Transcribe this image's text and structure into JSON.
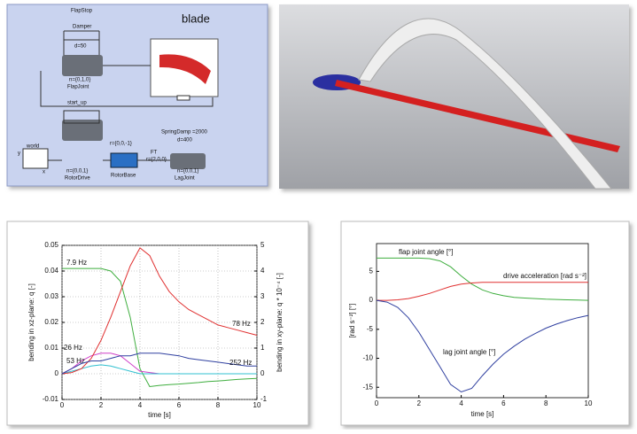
{
  "diagram": {
    "title": "blade",
    "labels": [
      "FlapStop",
      "Damper",
      "d=50",
      "n={0,1,0}",
      "FlapJoint",
      "start_up",
      "r={0,0,-1}",
      "world",
      "y",
      "x",
      "n={0,0,1}",
      "RotorDrive",
      "RotorBase",
      "FT",
      "r={2,0,0}",
      "SpringDamp =2000",
      "d=400",
      "n={0,0,1}",
      "LagJoint"
    ]
  },
  "chart_data": [
    {
      "type": "line",
      "xlabel": "time [s]",
      "ylabel": "bending in xz-plane: q [-]",
      "y2label": "bending in xy-plane: q * 10⁻⁴ [-]",
      "x": [
        0,
        0.5,
        1,
        1.5,
        2,
        2.5,
        3,
        3.5,
        4,
        4.5,
        5,
        5.5,
        6,
        6.5,
        7,
        7.5,
        8,
        8.5,
        9,
        9.5,
        10
      ],
      "series": [
        {
          "name": "7.9 Hz",
          "color": "#3fae3f",
          "values": [
            0.041,
            0.041,
            0.041,
            0.041,
            0.041,
            0.04,
            0.036,
            0.022,
            0.002,
            -0.005,
            -0.0045,
            -0.0042,
            -0.004,
            -0.0037,
            -0.0034,
            -0.003,
            -0.0028,
            -0.0025,
            -0.0022,
            -0.002,
            -0.0018
          ]
        },
        {
          "name": "26 Hz",
          "color": "#d040c8",
          "values": [
            0,
            0.002,
            0.005,
            0.007,
            0.008,
            0.008,
            0.007,
            0.004,
            0.001,
            0.0005,
            0,
            0,
            0,
            0,
            0,
            0,
            0,
            0,
            0,
            0,
            0
          ]
        },
        {
          "name": "53 Hz",
          "color": "#30c0d0",
          "values": [
            0,
            0.001,
            0.002,
            0.003,
            0.0035,
            0.003,
            0.002,
            0.001,
            0,
            0,
            0,
            0,
            0,
            0,
            0,
            0,
            0,
            0,
            0,
            0,
            0
          ]
        },
        {
          "name": "78 Hz",
          "color": "#e03030",
          "values": [
            0,
            0.0005,
            0.002,
            0.006,
            0.013,
            0.022,
            0.032,
            0.042,
            0.049,
            0.046,
            0.038,
            0.032,
            0.028,
            0.025,
            0.023,
            0.021,
            0.019,
            0.018,
            0.017,
            0.016,
            0.015
          ]
        },
        {
          "name": "252 Hz",
          "color": "#3040a0",
          "values": [
            0,
            0.002,
            0.004,
            0.005,
            0.005,
            0.006,
            0.007,
            0.007,
            0.008,
            0.008,
            0.008,
            0.0075,
            0.007,
            0.006,
            0.0055,
            0.005,
            0.0045,
            0.004,
            0.0035,
            0.003,
            0.003
          ]
        }
      ],
      "xlim": [
        0,
        10
      ],
      "xticks": [
        0,
        2,
        4,
        6,
        8,
        10
      ],
      "ylim": [
        -0.01,
        0.05
      ],
      "yticks": [
        -0.01,
        0,
        0.01,
        0.02,
        0.03,
        0.04,
        0.05
      ],
      "y2lim": [
        -1,
        5
      ],
      "y2ticks": [
        -1,
        0,
        1,
        2,
        3,
        4,
        5
      ],
      "grid": true
    },
    {
      "type": "line",
      "xlabel": "time [s]",
      "ylabel": "[rad s⁻²]   [°]",
      "x": [
        0,
        0.5,
        1,
        1.5,
        2,
        2.5,
        3,
        3.5,
        4,
        4.5,
        5,
        5.5,
        6,
        6.5,
        7,
        7.5,
        8,
        8.5,
        9,
        9.5,
        10
      ],
      "series": [
        {
          "name": "flap joint angle [°]",
          "color": "#3fae3f",
          "values": [
            7.3,
            7.3,
            7.3,
            7.3,
            7.3,
            7.2,
            6.8,
            5.8,
            4.2,
            2.8,
            1.8,
            1.2,
            0.8,
            0.5,
            0.4,
            0.3,
            0.2,
            0.15,
            0.1,
            0.05,
            0
          ]
        },
        {
          "name": "drive acceleration [rad s⁻²]",
          "color": "#e03030",
          "values": [
            0,
            0,
            0.1,
            0.3,
            0.7,
            1.2,
            1.8,
            2.4,
            2.8,
            3,
            3.1,
            3.1,
            3.1,
            3.1,
            3.1,
            3.1,
            3.1,
            3.1,
            3.1,
            3.1,
            3.1
          ]
        },
        {
          "name": "lag joint angle [°]",
          "color": "#3040a0",
          "values": [
            0,
            -0.3,
            -1.2,
            -3,
            -5.5,
            -8.5,
            -11.5,
            -14.5,
            -15.8,
            -15.2,
            -13,
            -11,
            -9.3,
            -7.9,
            -6.7,
            -5.7,
            -4.8,
            -4.1,
            -3.5,
            -3,
            -2.6
          ]
        }
      ],
      "xlim": [
        0,
        10
      ],
      "xticks": [
        0,
        2,
        4,
        6,
        8,
        10
      ],
      "ylim": [
        -16.8,
        9.8
      ],
      "yticks": [
        -15,
        -10,
        -5,
        0,
        5
      ],
      "grid": false
    }
  ]
}
